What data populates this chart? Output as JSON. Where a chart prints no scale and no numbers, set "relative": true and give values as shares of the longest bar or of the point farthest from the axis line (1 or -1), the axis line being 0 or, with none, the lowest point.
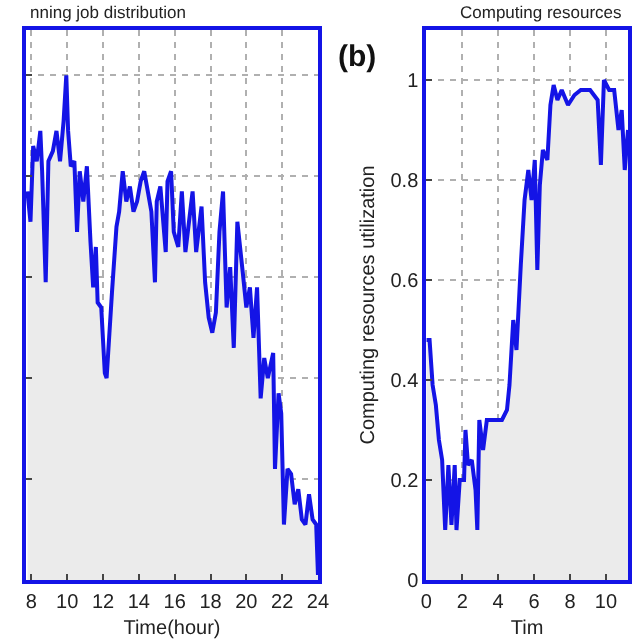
{
  "chart_data": [
    {
      "type": "area",
      "title": "nning job distribution",
      "xlabel": "Time(hour)",
      "relative": true,
      "grid": true,
      "xlim": [
        7.7,
        24
      ],
      "xticks": [
        8,
        10,
        12,
        14,
        16,
        18,
        20,
        22,
        24
      ],
      "tick_labels": "x",
      "series": [
        {
          "color": "#1414e6",
          "x": [
            7.78,
            7.95,
            8.1,
            8.3,
            8.5,
            8.6,
            8.8,
            8.95,
            9.2,
            9.4,
            9.6,
            9.8,
            9.95,
            10.05,
            10.2,
            10.4,
            10.55,
            10.7,
            10.9,
            11.1,
            11.3,
            11.45,
            11.6,
            11.7,
            11.9,
            12.1,
            12.2,
            12.5,
            12.75,
            12.9,
            13.1,
            13.3,
            13.5,
            13.7,
            13.9,
            14.1,
            14.3,
            14.5,
            14.7,
            14.9,
            15.0,
            15.2,
            15.5,
            15.6,
            15.8,
            15.95,
            16.2,
            16.4,
            16.6,
            16.8,
            17.0,
            17.2,
            17.5,
            17.7,
            17.9,
            18.1,
            18.3,
            18.5,
            18.7,
            18.9,
            19.1,
            19.3,
            19.5,
            19.8,
            20.0,
            20.2,
            20.4,
            20.6,
            20.8,
            21.0,
            21.2,
            21.5,
            21.6,
            21.8,
            21.95,
            22.1,
            22.3,
            22.5,
            22.7,
            22.9,
            23.1,
            23.3,
            23.5,
            23.7,
            23.9,
            24.0
          ],
          "values": [
            0.77,
            0.71,
            0.86,
            0.83,
            0.89,
            0.81,
            0.59,
            0.83,
            0.85,
            0.89,
            0.83,
            0.91,
            1,
            0.89,
            0.82,
            0.83,
            0.69,
            0.81,
            0.75,
            0.82,
            0.67,
            0.58,
            0.66,
            0.55,
            0.54,
            0.41,
            0.4,
            0.57,
            0.7,
            0.73,
            0.81,
            0.75,
            0.78,
            0.73,
            0.75,
            0.79,
            0.81,
            0.77,
            0.73,
            0.59,
            0.75,
            0.78,
            0.65,
            0.79,
            0.81,
            0.69,
            0.66,
            0.77,
            0.65,
            0.71,
            0.77,
            0.65,
            0.74,
            0.59,
            0.52,
            0.49,
            0.53,
            0.69,
            0.77,
            0.54,
            0.62,
            0.46,
            0.71,
            0.61,
            0.54,
            0.58,
            0.48,
            0.58,
            0.36,
            0.44,
            0.4,
            0.45,
            0.22,
            0.37,
            0.33,
            0.11,
            0.22,
            0.21,
            0.15,
            0.18,
            0.12,
            0.11,
            0.17,
            0.12,
            0.11,
            0.01
          ]
        }
      ]
    },
    {
      "type": "area",
      "title": "Computing resources",
      "xlabel": "Tim",
      "ylabel": "Computing resources utilization",
      "grid": true,
      "xlim": [
        0,
        11.23
      ],
      "xticks": [
        0,
        2,
        4,
        6,
        8,
        10
      ],
      "ylim": [
        0,
        1.1
      ],
      "yticks": [
        0,
        0.2,
        0.4,
        0.6,
        0.8,
        1
      ],
      "annotations": [
        "(b)"
      ],
      "series": [
        {
          "color": "#1414e6",
          "x": [
            0,
            0.18,
            0.35,
            0.53,
            0.7,
            0.88,
            1.05,
            1.23,
            1.4,
            1.58,
            1.68,
            1.86,
            2.1,
            2.18,
            2.32,
            2.53,
            2.74,
            2.84,
            2.95,
            3.16,
            3.37,
            3.68,
            4.21,
            4.49,
            4.63,
            4.84,
            5.02,
            5.26,
            5.47,
            5.68,
            5.86,
            6.04,
            6.18,
            6.32,
            6.49,
            6.74,
            6.91,
            7.09,
            7.3,
            7.54,
            7.89,
            8.25,
            8.6,
            9.12,
            9.54,
            9.72,
            9.89,
            10.18,
            10.46,
            10.7,
            10.88,
            11.05,
            11.23
          ],
          "values": [
            0.48,
            0.48,
            0.39,
            0.35,
            0.28,
            0.24,
            0.1,
            0.23,
            0.11,
            0.23,
            0.1,
            0.2,
            0.2,
            0.3,
            0.23,
            0.24,
            0.18,
            0.1,
            0.32,
            0.26,
            0.32,
            0.32,
            0.32,
            0.34,
            0.39,
            0.52,
            0.46,
            0.63,
            0.76,
            0.82,
            0.76,
            0.84,
            0.62,
            0.79,
            0.86,
            0.84,
            0.95,
            0.99,
            0.96,
            0.98,
            0.95,
            0.97,
            0.98,
            0.98,
            0.96,
            0.83,
            1.0,
            0.98,
            0.98,
            0.9,
            0.94,
            0.82,
            0.9
          ]
        }
      ]
    }
  ]
}
